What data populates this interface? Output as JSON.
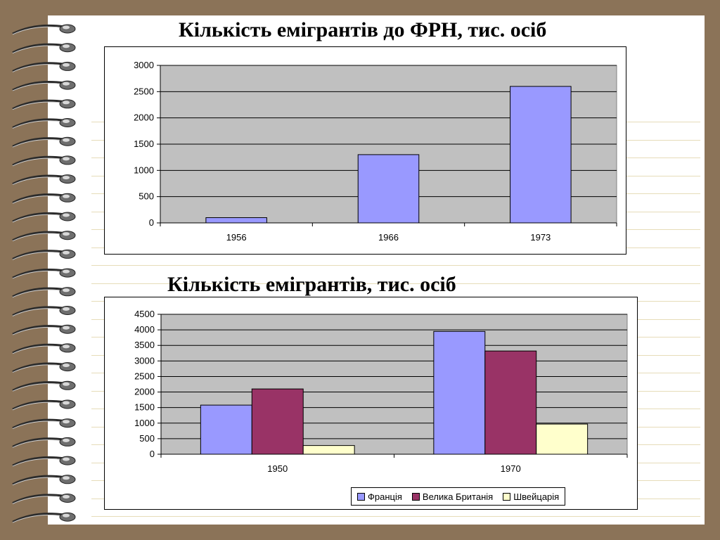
{
  "slide": {
    "title1": "Кількість емігрантів до ФРН, тис. осіб",
    "title2": "Кількість емігрантів, тис. осіб"
  },
  "chart_data": [
    {
      "type": "bar",
      "title": "Кількість емігрантів до ФРН, тис. осіб",
      "categories": [
        "1956",
        "1966",
        "1973"
      ],
      "values": [
        100,
        1300,
        2600
      ],
      "yticks": [
        "0",
        "500",
        "1000",
        "1500",
        "2000",
        "2500",
        "3000"
      ],
      "ylim": [
        0,
        3000
      ],
      "grid": true,
      "color": "#9999ff",
      "plot_bg": "#c0c0c0"
    },
    {
      "type": "bar",
      "title": "Кількість емігрантів, тис. осіб",
      "categories": [
        "1950",
        "1970"
      ],
      "series": [
        {
          "name": "Франція",
          "values": [
            1580,
            3950
          ],
          "color": "#9999ff"
        },
        {
          "name": "Велика Британія",
          "values": [
            2100,
            3320
          ],
          "color": "#993366"
        },
        {
          "name": "Швейцарія",
          "values": [
            280,
            970
          ],
          "color": "#ffffcc"
        }
      ],
      "yticks": [
        "0",
        "500",
        "1000",
        "1500",
        "2000",
        "2500",
        "3000",
        "3500",
        "4000",
        "4500"
      ],
      "ylim": [
        0,
        4500
      ],
      "grid": true,
      "legend": "bottom",
      "plot_bg": "#c0c0c0"
    }
  ]
}
